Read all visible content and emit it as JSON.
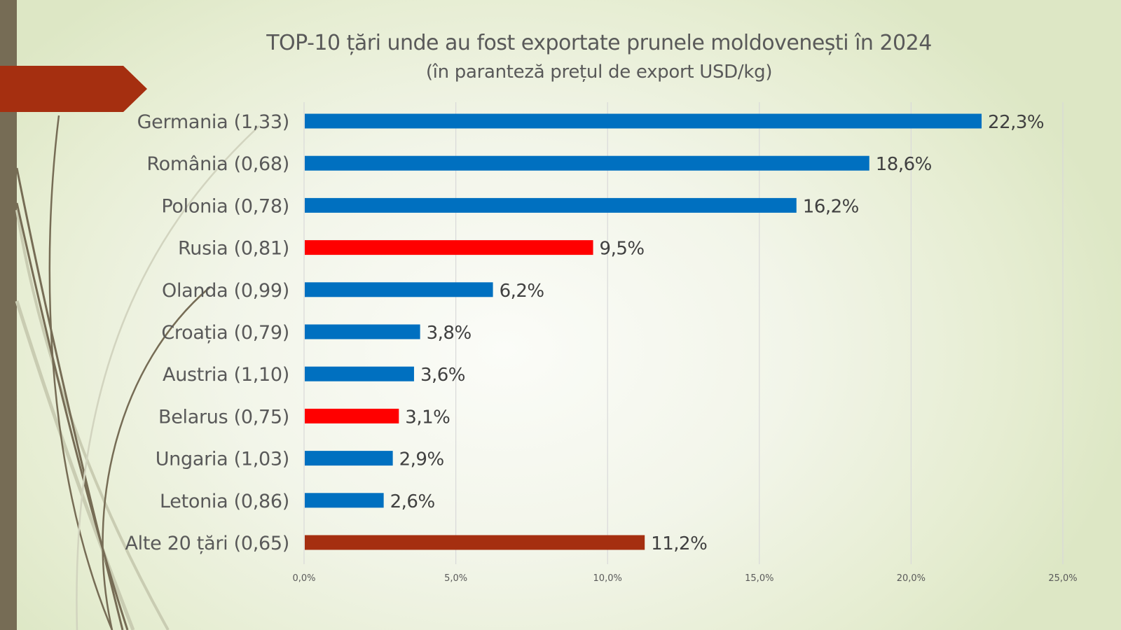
{
  "slide": {
    "title": "TOP-10 țări unde au fost exportate prunele moldovenești în 2024",
    "subtitle": "(în paranteză prețul de export USD/kg)"
  },
  "colors": {
    "eu_bar": "#0070c0",
    "highlight_bar": "#ff0000",
    "other_bar": "#a52f10",
    "accent_banner": "#a52f10",
    "side_band": "#766c55",
    "text": "#595959"
  },
  "chart_data": {
    "type": "bar",
    "orientation": "horizontal",
    "title": "TOP-10 țări unde au fost exportate prunele moldovenești în 2024",
    "subtitle": "(în paranteză prețul de export USD/kg)",
    "xlabel": "",
    "ylabel": "",
    "xlim": [
      0,
      25
    ],
    "x_ticks": [
      0,
      5,
      10,
      15,
      20,
      25
    ],
    "x_tick_labels": [
      "0,0%",
      "5,0%",
      "10,0%",
      "15,0%",
      "20,0%",
      "25,0%"
    ],
    "grid": "vertical",
    "legend": "none",
    "categories": [
      "Germania (1,33)",
      "România (0,68)",
      "Polonia (0,78)",
      "Rusia (0,81)",
      "Olanda (0,99)",
      "Croația (0,79)",
      "Austria (1,10)",
      "Belarus (0,75)",
      "Ungaria (1,03)",
      "Letonia (0,86)",
      "Alte 20 țări (0,65)"
    ],
    "countries": [
      "Germania",
      "România",
      "Polonia",
      "Rusia",
      "Olanda",
      "Croația",
      "Austria",
      "Belarus",
      "Ungaria",
      "Letonia",
      "Alte 20 țări"
    ],
    "price_usd_per_kg": [
      1.33,
      0.68,
      0.78,
      0.81,
      0.99,
      0.79,
      1.1,
      0.75,
      1.03,
      0.86,
      0.65
    ],
    "values": [
      22.3,
      18.6,
      16.2,
      9.5,
      6.2,
      3.8,
      3.6,
      3.1,
      2.9,
      2.6,
      11.2
    ],
    "value_labels": [
      "22,3%",
      "18,6%",
      "16,2%",
      "9,5%",
      "6,2%",
      "3,8%",
      "3,6%",
      "3,1%",
      "2,9%",
      "2,6%",
      "11,2%"
    ],
    "bar_colors": [
      "#0070c0",
      "#0070c0",
      "#0070c0",
      "#ff0000",
      "#0070c0",
      "#0070c0",
      "#0070c0",
      "#ff0000",
      "#0070c0",
      "#0070c0",
      "#a52f10"
    ]
  }
}
